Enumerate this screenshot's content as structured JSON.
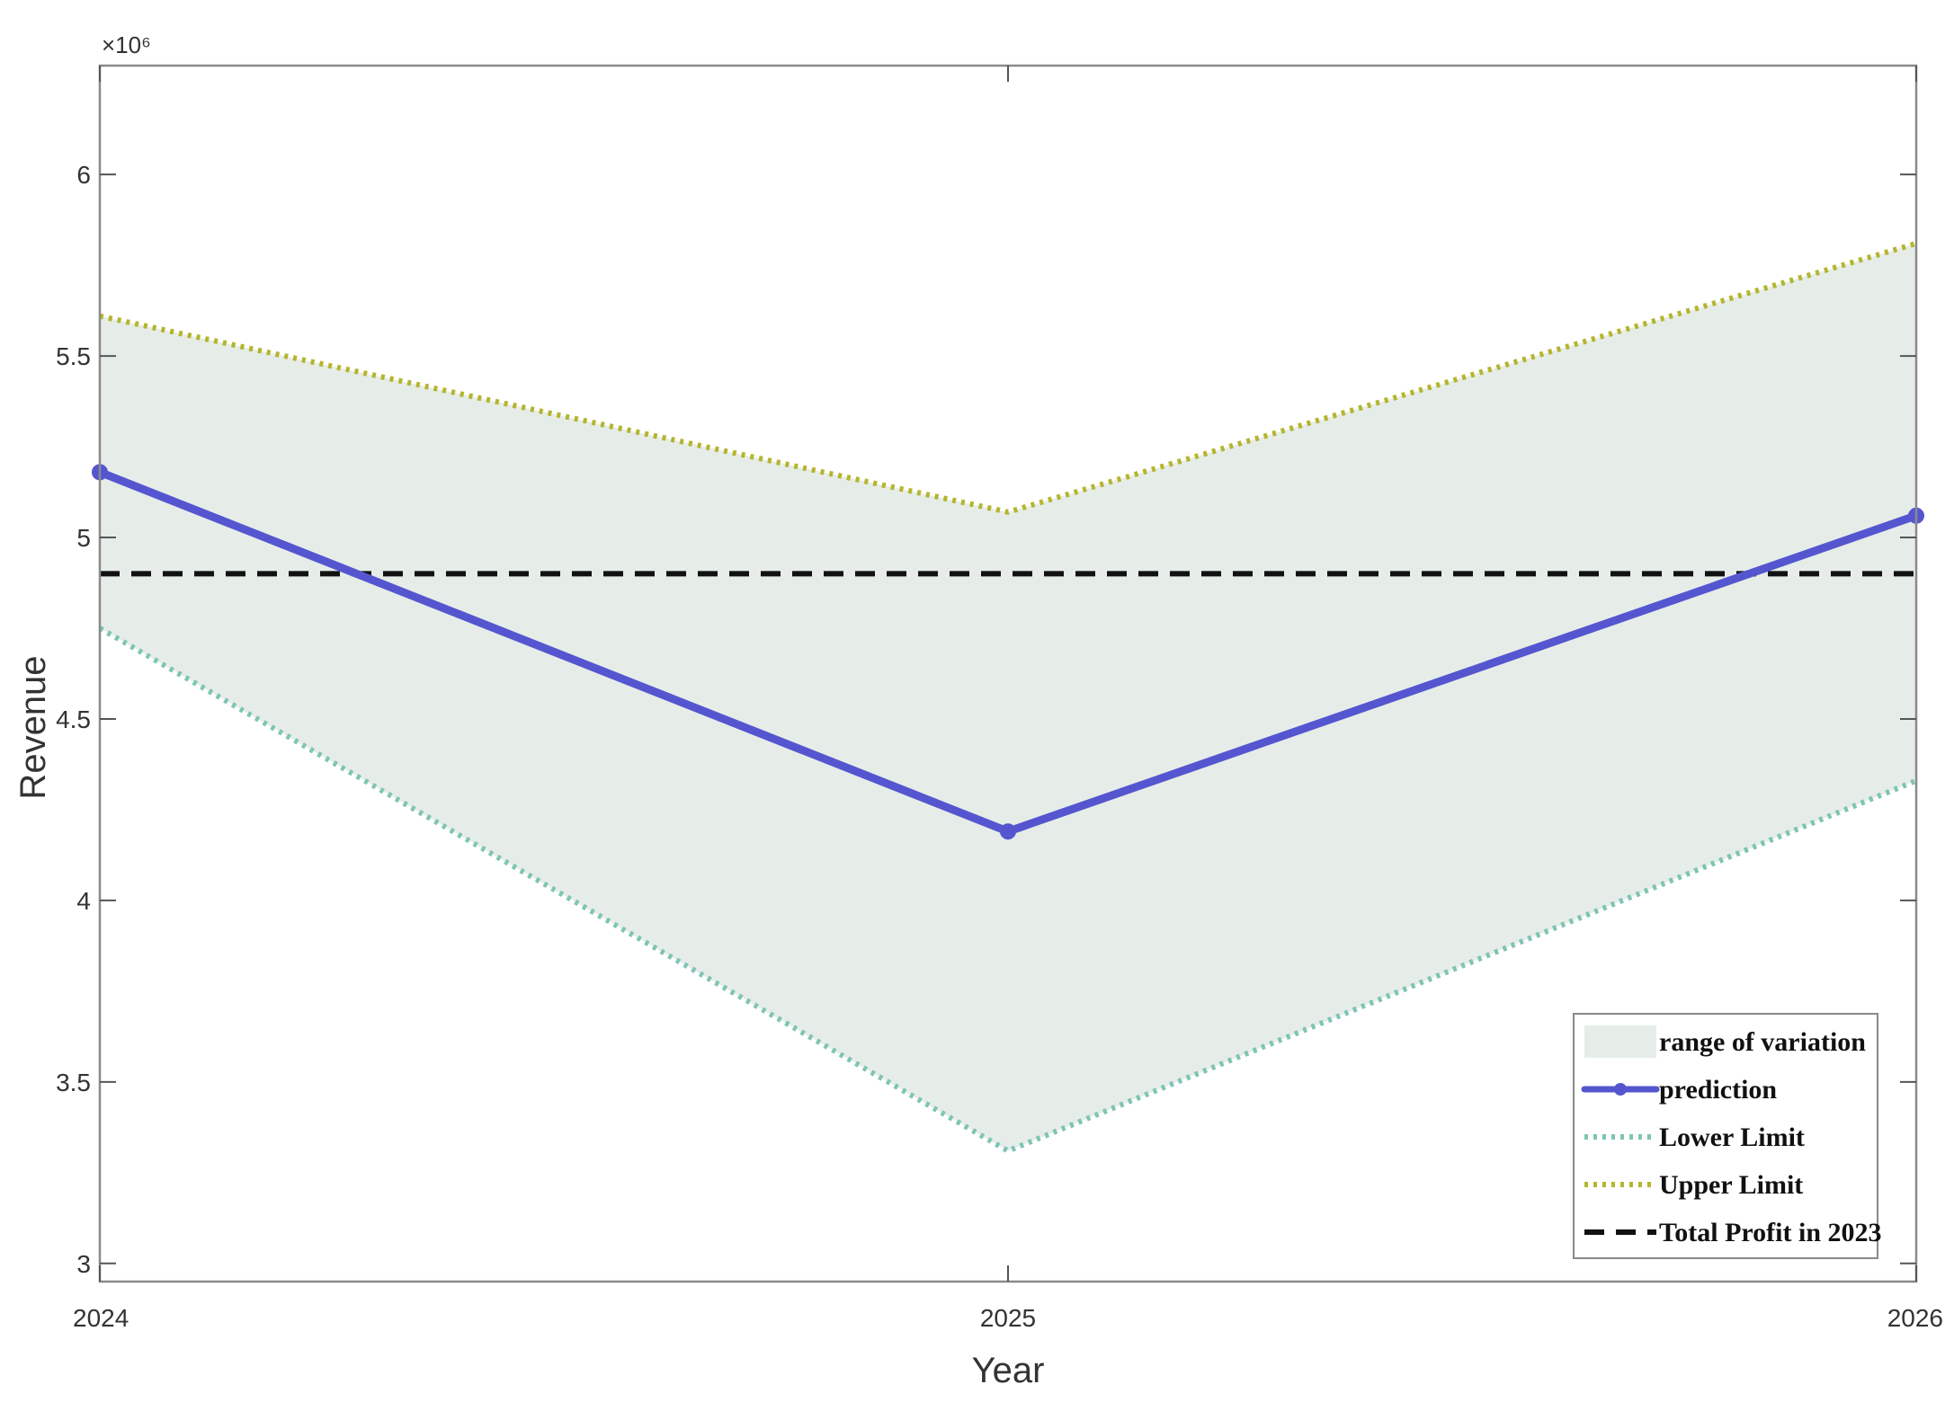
{
  "chart_data": {
    "type": "line",
    "xlabel": "Year",
    "ylabel": "Revenue",
    "y_exponent_label": "×10⁶",
    "y_multiplier": 1000000,
    "x": [
      2024,
      2025,
      2026
    ],
    "xlim": [
      2024,
      2026
    ],
    "ylim": [
      2.95,
      6.3
    ],
    "x_ticks": [
      "2024",
      "2025",
      "2026"
    ],
    "y_ticks": [
      3,
      3.5,
      4,
      4.5,
      5,
      5.5,
      6
    ],
    "y_tick_labels": [
      "3",
      "3.5",
      "4",
      "4.5",
      "5",
      "5.5",
      "6"
    ],
    "grid": false,
    "legend_position": "bottom-right",
    "band": {
      "name": "range of variation",
      "lower": [
        4.75,
        3.31,
        4.33
      ],
      "upper": [
        5.61,
        5.07,
        5.81
      ],
      "color": "#e6ede9"
    },
    "series": [
      {
        "name": "prediction",
        "values": [
          5.18,
          4.19,
          5.06
        ],
        "color": "#5556cf",
        "style": "solid-marker"
      },
      {
        "name": "Lower Limit",
        "values": [
          4.75,
          3.31,
          4.33
        ],
        "color": "#7fc4b4",
        "style": "dotted"
      },
      {
        "name": "Upper Limit",
        "values": [
          5.61,
          5.07,
          5.81
        ],
        "color": "#b5b52e",
        "style": "dotted"
      },
      {
        "name": "Total Profit in 2023",
        "values": [
          4.9,
          4.9,
          4.9
        ],
        "color": "#111111",
        "style": "dashed"
      }
    ]
  }
}
